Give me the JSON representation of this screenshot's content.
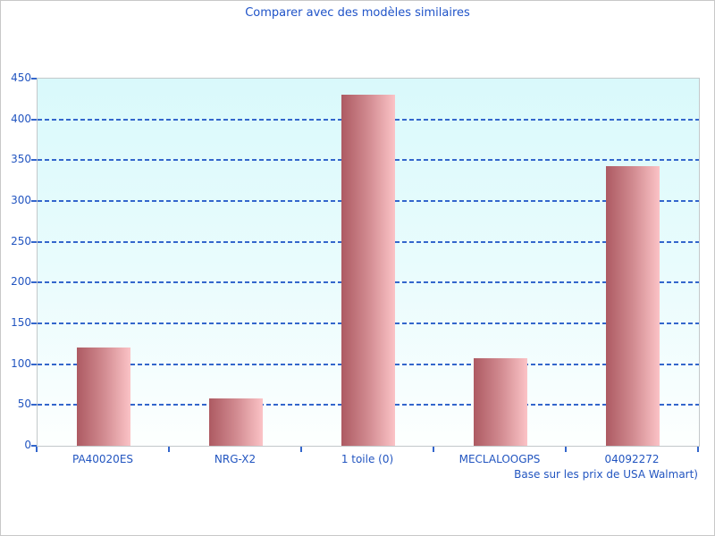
{
  "chart_data": {
    "type": "bar",
    "title": "Comparer avec des modèles similaires",
    "categories": [
      "PA40020ES",
      "NRG-X2",
      "1 toile (0)",
      "MECLALOOGPS",
      "04092272"
    ],
    "values": [
      120,
      58,
      430,
      107,
      343
    ],
    "xlabel": "",
    "ylabel": "",
    "ylim": [
      0,
      450
    ],
    "ytick_step": 50,
    "yticks": [
      0,
      50,
      100,
      150,
      200,
      250,
      300,
      350,
      400,
      450
    ],
    "grid": "horizontal dashed, on",
    "legend_position": "none",
    "footnote": "Base sur les prix de USA Walmart)",
    "colors": {
      "title_text": "#1f53c8",
      "axis_text": "#2255c0",
      "gridline": "#3366cc",
      "plot_border": "#c3c8ca",
      "plot_bg_top": "#d9f9fb",
      "plot_bg_bottom": "#fdfffe",
      "bar_gradient_dark": "#ad5a62",
      "bar_gradient_light": "#fbc3c6"
    }
  }
}
